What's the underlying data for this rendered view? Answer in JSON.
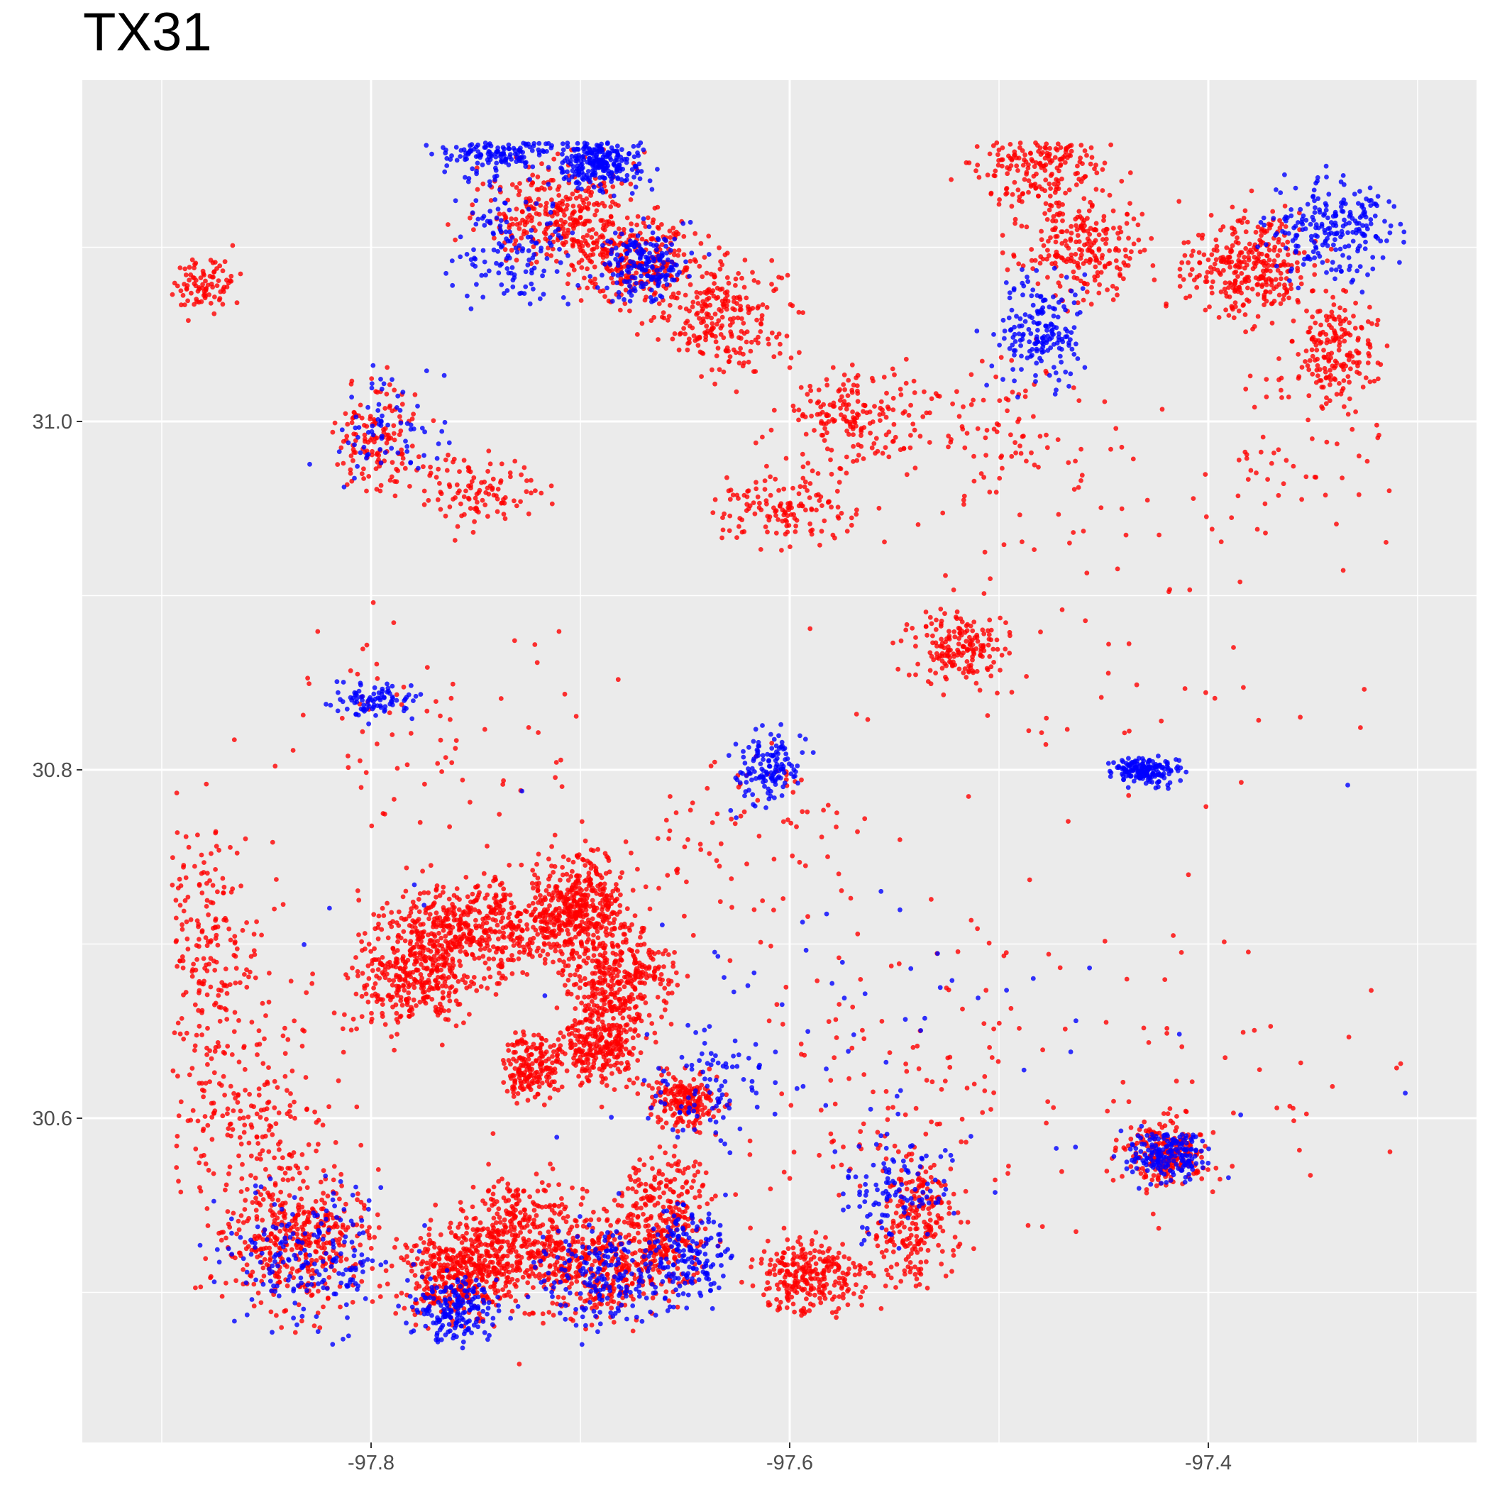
{
  "chart_data": {
    "type": "scatter",
    "title": "TX31",
    "xlabel": "",
    "ylabel": "",
    "xlim": [
      -97.9,
      -97.3
    ],
    "ylim": [
      30.45,
      31.22
    ],
    "x_ticks": [
      -97.8,
      -97.6,
      -97.4
    ],
    "x_tick_labels": [
      "-97.8",
      "-97.6",
      "-97.4"
    ],
    "y_ticks": [
      30.6,
      30.8,
      31.0
    ],
    "y_tick_labels": [
      "30.6",
      "30.8",
      "31.0"
    ],
    "grid": true,
    "legend": "none",
    "colors": {
      "red": "#ff0000",
      "blue": "#0000ff",
      "panel": "#ebebeb",
      "grid": "#ffffff",
      "tick_text": "#4d4d4d",
      "tick": "#333333"
    },
    "series": [
      {
        "color": "red",
        "clusters": [
          [
            -97.835,
            30.53,
            0.035,
            0.04,
            0.45
          ],
          [
            -97.76,
            30.51,
            0.025,
            0.025,
            0.4
          ],
          [
            -97.73,
            30.53,
            0.03,
            0.035,
            0.45
          ],
          [
            -97.69,
            30.515,
            0.03,
            0.03,
            0.35
          ],
          [
            -97.66,
            30.54,
            0.02,
            0.04,
            0.35
          ],
          [
            -97.59,
            30.51,
            0.025,
            0.02,
            0.3
          ],
          [
            -97.54,
            30.54,
            0.02,
            0.04,
            0.25
          ],
          [
            -97.75,
            30.71,
            0.045,
            0.025,
            0.6
          ],
          [
            -97.7,
            30.72,
            0.02,
            0.03,
            0.45
          ],
          [
            -97.68,
            30.68,
            0.025,
            0.03,
            0.4
          ],
          [
            -97.69,
            30.64,
            0.02,
            0.02,
            0.3
          ],
          [
            -97.78,
            30.68,
            0.03,
            0.025,
            0.35
          ],
          [
            -97.86,
            30.6,
            0.04,
            0.06,
            0.25
          ],
          [
            -97.88,
            30.7,
            0.03,
            0.08,
            0.25
          ],
          [
            -97.65,
            30.61,
            0.015,
            0.015,
            0.2
          ],
          [
            -97.725,
            30.63,
            0.015,
            0.02,
            0.2
          ],
          [
            -97.71,
            31.12,
            0.035,
            0.03,
            0.35
          ],
          [
            -97.67,
            31.09,
            0.03,
            0.025,
            0.3
          ],
          [
            -97.63,
            31.06,
            0.03,
            0.03,
            0.25
          ],
          [
            -97.46,
            31.1,
            0.03,
            0.03,
            0.25
          ],
          [
            -97.48,
            31.15,
            0.03,
            0.03,
            0.3
          ],
          [
            -97.38,
            31.09,
            0.03,
            0.03,
            0.35
          ],
          [
            -97.52,
            30.87,
            0.025,
            0.02,
            0.2
          ],
          [
            -97.6,
            30.95,
            0.03,
            0.02,
            0.15
          ],
          [
            -97.57,
            31.0,
            0.035,
            0.03,
            0.2
          ],
          [
            -97.88,
            31.08,
            0.015,
            0.015,
            0.1
          ],
          [
            -97.8,
            30.99,
            0.02,
            0.03,
            0.15
          ],
          [
            -97.75,
            30.96,
            0.03,
            0.02,
            0.12
          ],
          [
            -97.5,
            30.99,
            0.06,
            0.05,
            0.12
          ],
          [
            -97.42,
            30.58,
            0.02,
            0.02,
            0.25
          ],
          [
            -97.55,
            30.62,
            0.08,
            0.08,
            0.12
          ],
          [
            -97.62,
            30.77,
            0.07,
            0.07,
            0.1
          ],
          [
            -97.78,
            30.82,
            0.06,
            0.06,
            0.08
          ],
          [
            -97.45,
            30.87,
            0.09,
            0.09,
            0.06
          ],
          [
            -97.4,
            30.62,
            0.09,
            0.08,
            0.06
          ],
          [
            -97.35,
            30.98,
            0.06,
            0.06,
            0.08
          ],
          [
            -97.34,
            31.04,
            0.02,
            0.03,
            0.2
          ],
          [
            -97.6,
            30.65,
            0.3,
            0.2,
            0.05
          ]
        ]
      },
      {
        "color": "blue",
        "clusters": [
          [
            -97.74,
            31.16,
            0.025,
            0.02,
            0.3
          ],
          [
            -97.69,
            31.15,
            0.02,
            0.015,
            0.3
          ],
          [
            -97.67,
            31.09,
            0.02,
            0.02,
            0.2
          ],
          [
            -97.73,
            31.1,
            0.03,
            0.03,
            0.15
          ],
          [
            -97.34,
            31.11,
            0.03,
            0.03,
            0.25
          ],
          [
            -97.48,
            31.05,
            0.02,
            0.03,
            0.2
          ],
          [
            -97.42,
            30.58,
            0.02,
            0.015,
            0.2
          ],
          [
            -97.83,
            30.52,
            0.04,
            0.04,
            0.22
          ],
          [
            -97.69,
            30.51,
            0.03,
            0.03,
            0.2
          ],
          [
            -97.65,
            30.52,
            0.02,
            0.03,
            0.18
          ],
          [
            -97.76,
            30.49,
            0.02,
            0.02,
            0.2
          ],
          [
            -97.64,
            30.62,
            0.03,
            0.03,
            0.1
          ],
          [
            -97.55,
            30.56,
            0.03,
            0.03,
            0.12
          ],
          [
            -97.61,
            30.8,
            0.015,
            0.02,
            0.15
          ],
          [
            -97.43,
            30.8,
            0.015,
            0.008,
            0.2
          ],
          [
            -97.8,
            30.84,
            0.02,
            0.01,
            0.1
          ],
          [
            -97.79,
            31.0,
            0.03,
            0.03,
            0.08
          ],
          [
            -97.56,
            30.65,
            0.08,
            0.08,
            0.05
          ],
          [
            -97.6,
            30.65,
            0.3,
            0.2,
            0.03
          ]
        ]
      }
    ]
  }
}
